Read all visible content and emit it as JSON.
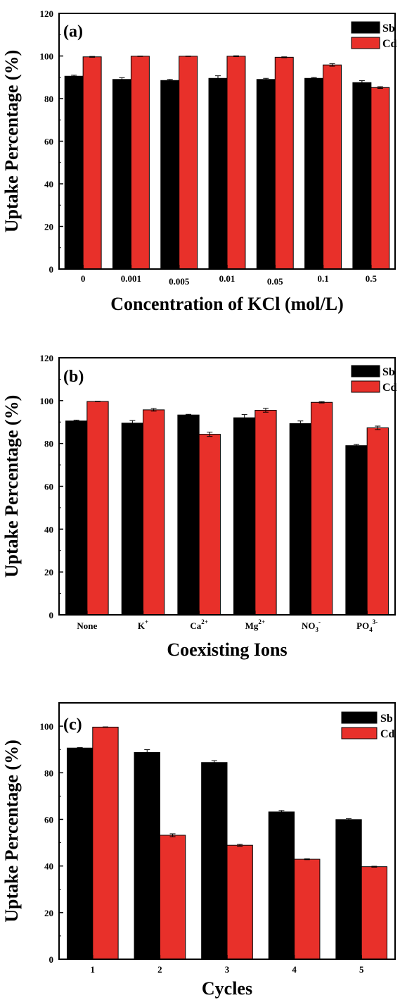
{
  "colors": {
    "sb": "#000000",
    "cd": "#e8302a",
    "axis": "#000000",
    "error": "#000000"
  },
  "chart_data": [
    {
      "type": "bar",
      "panel_label": "(a)",
      "xlabel": "Concentration of KCl (mol/L)",
      "ylabel": "Uptake Percentage (%)",
      "categories": [
        "0",
        "0.001",
        "0.005",
        "0.01",
        "0.05",
        "0.1",
        "0.5"
      ],
      "yticks": [
        "0",
        "20",
        "40",
        "60",
        "80",
        "100",
        "120"
      ],
      "ylim": [
        0,
        120
      ],
      "legend_position": "top-right",
      "series": [
        {
          "name": "Sb",
          "values": [
            90.5,
            89.0,
            88.5,
            89.5,
            89.0,
            89.5,
            87.5
          ],
          "errors": [
            0.5,
            0.8,
            0.5,
            1.2,
            0.5,
            0.4,
            0.9
          ]
        },
        {
          "name": "Cd",
          "values": [
            99.6,
            99.9,
            99.9,
            99.9,
            99.4,
            95.8,
            85.2
          ],
          "errors": [
            0.2,
            0.1,
            0.1,
            0.2,
            0.2,
            0.6,
            0.4
          ]
        }
      ]
    },
    {
      "type": "bar",
      "panel_label": "(b)",
      "xlabel": "Coexisting Ions",
      "ylabel": "Uptake Percentage (%)",
      "categories": [
        {
          "base": "None",
          "sub": "",
          "sup": ""
        },
        {
          "base": "K",
          "sub": "",
          "sup": "+"
        },
        {
          "base": "Ca",
          "sub": "",
          "sup": "2+"
        },
        {
          "base": "Mg",
          "sub": "",
          "sup": "2+"
        },
        {
          "base": "NO",
          "sub": "3",
          "sup": "-"
        },
        {
          "base": "PO",
          "sub": "4",
          "sup": "3-"
        }
      ],
      "yticks": [
        "0",
        "20",
        "40",
        "60",
        "80",
        "100",
        "120"
      ],
      "ylim": [
        0,
        120
      ],
      "legend_position": "top-right",
      "series": [
        {
          "name": "Sb",
          "values": [
            90.5,
            89.5,
            93.3,
            92.0,
            89.3,
            79.0
          ],
          "errors": [
            0.4,
            1.2,
            0.3,
            1.5,
            1.2,
            0.5
          ]
        },
        {
          "name": "Cd",
          "values": [
            99.6,
            95.7,
            84.3,
            95.5,
            99.2,
            87.3
          ],
          "errors": [
            0.1,
            0.6,
            1.0,
            0.9,
            0.3,
            0.8
          ]
        }
      ]
    },
    {
      "type": "bar",
      "panel_label": "(c)",
      "xlabel": "Cycles",
      "ylabel": "Uptake Percentage (%)",
      "categories": [
        "1",
        "2",
        "3",
        "4",
        "5"
      ],
      "yticks": [
        "0",
        "20",
        "40",
        "60",
        "80",
        "100"
      ],
      "ylim": [
        0,
        110
      ],
      "legend_position": "top-right",
      "series": [
        {
          "name": "Sb",
          "values": [
            90.6,
            88.7,
            84.4,
            63.2,
            59.9
          ],
          "errors": [
            0.2,
            1.2,
            0.8,
            0.6,
            0.4
          ]
        },
        {
          "name": "Cd",
          "values": [
            99.6,
            53.2,
            48.9,
            42.9,
            39.7
          ],
          "errors": [
            0.1,
            0.6,
            0.4,
            0.2,
            0.2
          ]
        }
      ]
    }
  ]
}
